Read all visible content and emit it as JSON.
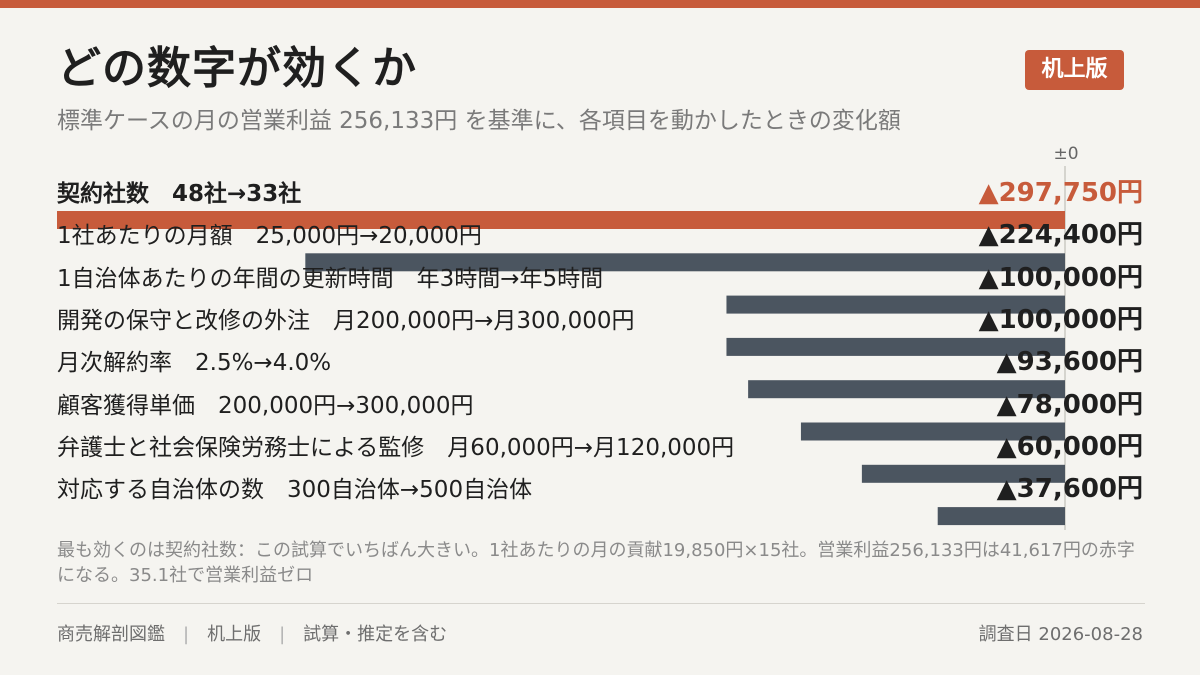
{
  "header": {
    "title": "どの数字が効くか",
    "badge": "机上版",
    "subtitle": "標準ケースの月の営業利益 256,133円 を基準に、各項目を動かしたときの変化額"
  },
  "chart_data": {
    "type": "bar",
    "orientation": "horizontal",
    "baseline_label": "±0",
    "baseline_value": 256133,
    "baseline_unit": "円",
    "highlight_color": "#c75b3b",
    "bar_color": "#4b5560",
    "rows": [
      {
        "label": "契約社数　48社→33社",
        "value": -297750,
        "value_label": "▲297,750円",
        "highlight": true
      },
      {
        "label": "1社あたりの月額　25,000円→20,000円",
        "value": -224400,
        "value_label": "▲224,400円",
        "highlight": false
      },
      {
        "label": "1自治体あたりの年間の更新時間　年3時間→年5時間",
        "value": -100000,
        "value_label": "▲100,000円",
        "highlight": false
      },
      {
        "label": "開発の保守と改修の外注　月200,000円→月300,000円",
        "value": -100000,
        "value_label": "▲100,000円",
        "highlight": false
      },
      {
        "label": "月次解約率　2.5%→4.0%",
        "value": -93600,
        "value_label": "▲93,600円",
        "highlight": false
      },
      {
        "label": "顧客獲得単価　200,000円→300,000円",
        "value": -78000,
        "value_label": "▲78,000円",
        "highlight": false
      },
      {
        "label": "弁護士と社会保険労務士による監修　月60,000円→月120,000円",
        "value": -60000,
        "value_label": "▲60,000円",
        "highlight": false
      },
      {
        "label": "対応する自治体の数　300自治体→500自治体",
        "value": -37600,
        "value_label": "▲37,600円",
        "highlight": false
      }
    ]
  },
  "note": "最も効くのは契約社数：この試算でいちばん大きい。1社あたりの月の貢献19,850円×15社。営業利益256,133円は41,617円の赤字になる。35.1社で営業利益ゼロ",
  "footer": {
    "source": "商売解剖図鑑",
    "edition": "机上版",
    "disclaimer": "試算・推定を含む",
    "date": "調査日 2026-08-28"
  }
}
